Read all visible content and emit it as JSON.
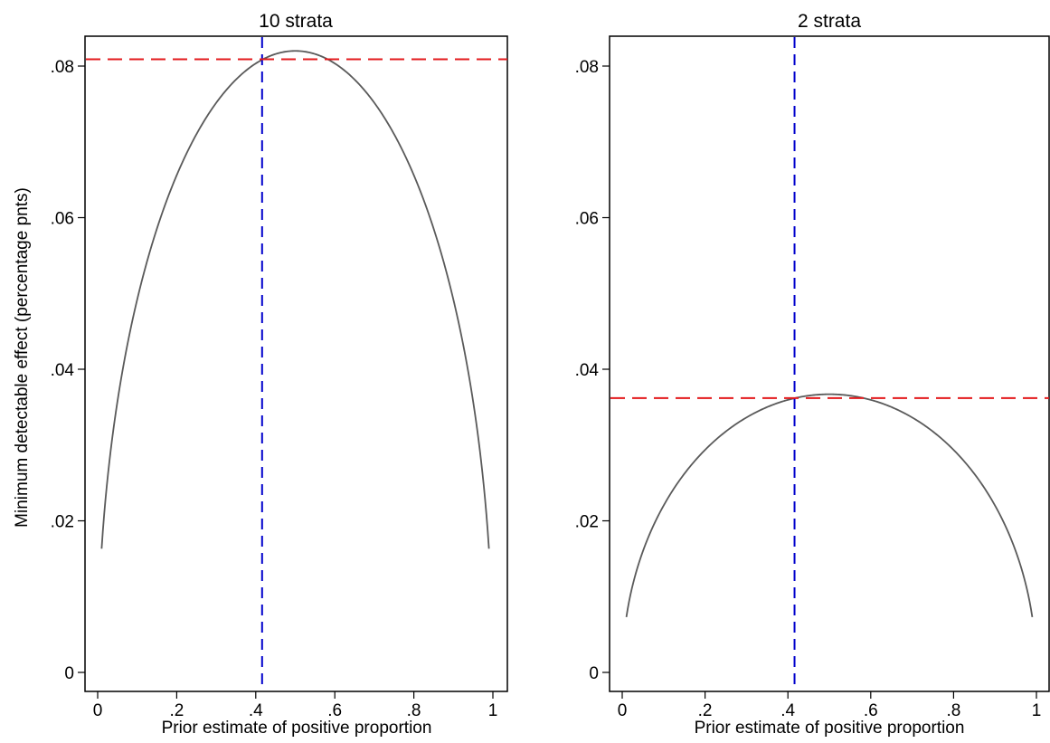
{
  "chart_data": [
    {
      "type": "line",
      "title": "10 strata",
      "xlabel": "Prior estimate of positive proportion",
      "ylabel": "Minimum detectable effect (percentage pnts)",
      "xlim": [
        0,
        1
      ],
      "ylim": [
        0,
        0.08
      ],
      "x_ticks": [
        0,
        0.2,
        0.4,
        0.6,
        0.8,
        1
      ],
      "x_tick_labels": [
        "0",
        ".2",
        ".4",
        ".6",
        ".8",
        "1"
      ],
      "y_ticks": [
        0,
        0.02,
        0.04,
        0.06,
        0.08
      ],
      "y_tick_labels": [
        "0",
        ".02",
        ".04",
        ".06",
        ".08"
      ],
      "grid": false,
      "series": [
        {
          "color": "#5a5a5a",
          "curve": "0.164 * sqrt(x * (1 - x))",
          "x_range": [
            0.01,
            0.99
          ],
          "peak": {
            "x": 0.5,
            "y": 0.082
          }
        }
      ],
      "reference_lines": {
        "vertical": {
          "x": 0.416,
          "color": "#0000cc",
          "style": "dashed"
        },
        "horizontal": {
          "y": 0.0809,
          "color": "#e31a1c",
          "style": "dashed"
        }
      }
    },
    {
      "type": "line",
      "title": "2 strata",
      "xlabel": "Prior estimate of positive proportion",
      "ylabel": "",
      "xlim": [
        0,
        1
      ],
      "ylim": [
        0,
        0.08
      ],
      "x_ticks": [
        0,
        0.2,
        0.4,
        0.6,
        0.8,
        1
      ],
      "x_tick_labels": [
        "0",
        ".2",
        ".4",
        ".6",
        ".8",
        "1"
      ],
      "y_ticks": [
        0,
        0.02,
        0.04,
        0.06,
        0.08
      ],
      "y_tick_labels": [
        "0",
        ".02",
        ".04",
        ".06",
        ".08"
      ],
      "grid": false,
      "series": [
        {
          "color": "#5a5a5a",
          "curve": "0.0734 * sqrt(x * (1 - x))",
          "x_range": [
            0.01,
            0.99
          ],
          "peak": {
            "x": 0.5,
            "y": 0.0367
          }
        }
      ],
      "reference_lines": {
        "vertical": {
          "x": 0.416,
          "color": "#0000cc",
          "style": "dashed"
        },
        "horizontal": {
          "y": 0.0362,
          "color": "#e31a1c",
          "style": "dashed"
        }
      }
    }
  ]
}
